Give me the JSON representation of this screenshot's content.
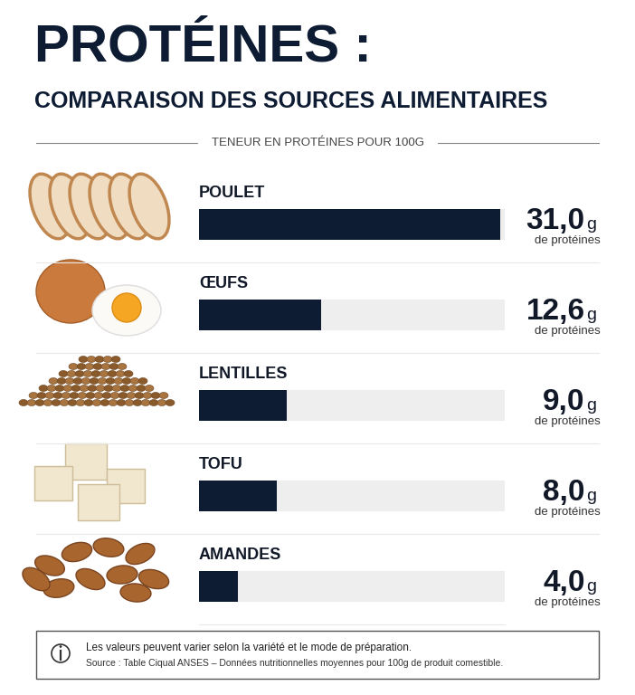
{
  "chart_data": {
    "type": "bar",
    "orientation": "horizontal",
    "title": "PROTÉINES :",
    "subtitle": "COMPARAISON DES SOURCES ALIMENTAIRES",
    "header": "TENEUR EN PROTÉINES POUR 100G",
    "categories": [
      "POULET",
      "ŒUFS",
      "LENTILLES",
      "TOFU",
      "AMANDES"
    ],
    "values": [
      31.0,
      12.6,
      9.0,
      8.0,
      4.0
    ],
    "value_labels": [
      "31,0",
      "12,6",
      "9,0",
      "8,0",
      "4,0"
    ],
    "value_unit": "g",
    "value_caption": "de protéines",
    "data_labels": true,
    "color": "#0d1b33",
    "xlim": [
      0,
      31.5
    ],
    "xticks": [],
    "tick_labels": false,
    "grid": false,
    "note": "Les valeurs peuvent varier selon la variété et le mode de préparation.",
    "source": "Source : Table Ciqual ANSES – Données nutritionnelles moyennes pour 100g de produit comestible."
  }
}
